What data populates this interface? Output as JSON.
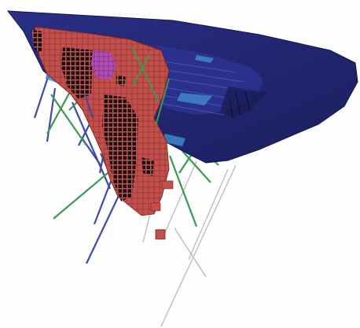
{
  "image": {
    "kind": "3D geological orebody model",
    "background": "#fefefe"
  },
  "colors": {
    "pit_surface": "#1f2266",
    "pit_surface_light": "#2a2f88",
    "pit_bench_line": "#3a4a9e",
    "bench_highlight": "#3f86c9",
    "orebody_blocks": "#c2504c",
    "orebody_edge": "#7a1e1c",
    "high_grade_blocks": "#b14fb4",
    "drill_dark": "#0c0c0c",
    "drillhole_green": "#3a9a52",
    "drillhole_blue": "#3d4aa8",
    "drillhole_grey": "#b9b9b9"
  }
}
